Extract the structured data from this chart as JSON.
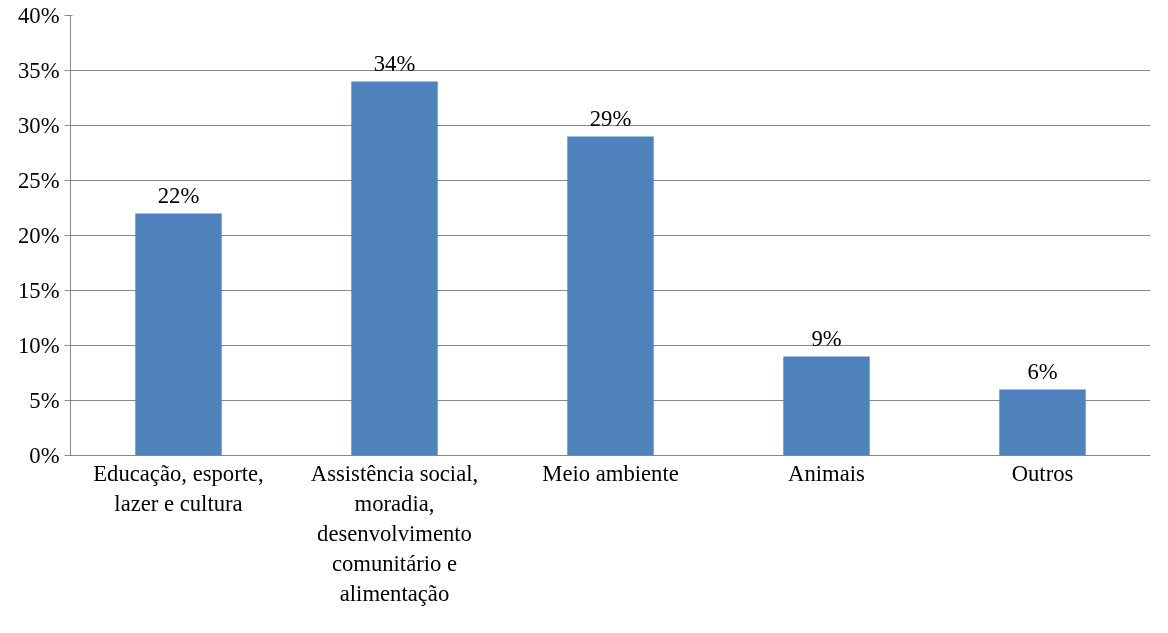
{
  "chart_data": {
    "type": "bar",
    "categories": [
      "Educação, esporte, lazer e cultura",
      "Assistência social, moradia, desenvolvimento comunitário e alimentação",
      "Meio ambiente",
      "Animais",
      "Outros"
    ],
    "values": [
      22,
      34,
      29,
      9,
      6
    ],
    "value_labels": [
      "22%",
      "34%",
      "29%",
      "9%",
      "6%"
    ],
    "color": "#4f81bd",
    "ylim": [
      0,
      40
    ],
    "yticks": [
      {
        "value": 0,
        "label": "0%"
      },
      {
        "value": 5,
        "label": "5%"
      },
      {
        "value": 10,
        "label": "10%"
      },
      {
        "value": 15,
        "label": "15%"
      },
      {
        "value": 20,
        "label": "20%"
      },
      {
        "value": 25,
        "label": "25%"
      },
      {
        "value": 30,
        "label": "30%"
      },
      {
        "value": 35,
        "label": "35%"
      },
      {
        "value": 40,
        "label": "40%"
      }
    ],
    "grid": "y"
  }
}
